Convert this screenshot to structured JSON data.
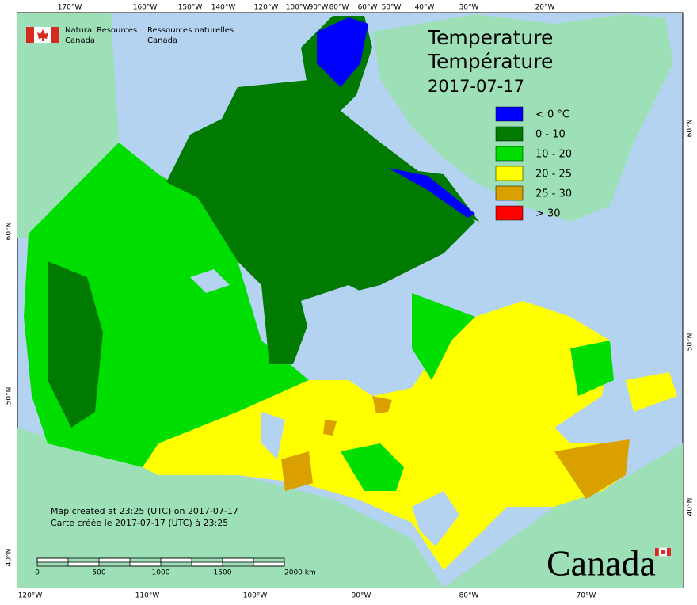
{
  "header": {
    "agency_en": [
      "Natural Resources",
      "Canada"
    ],
    "agency_fr": [
      "Ressources naturelles",
      "Canada"
    ]
  },
  "title": {
    "lines": [
      "Temperature",
      "Température",
      "2017-07-17"
    ]
  },
  "legend": [
    {
      "label": "< 0 °C",
      "color": "#0000ff"
    },
    {
      "label": "0 - 10",
      "color": "#007a00"
    },
    {
      "label": "10 - 20",
      "color": "#00dd00"
    },
    {
      "label": "20 - 25",
      "color": "#ffff00"
    },
    {
      "label": "25 - 30",
      "color": "#d9a000"
    },
    {
      "label": "> 30",
      "color": "#ff0000"
    }
  ],
  "graticule": {
    "top": [
      "170°W",
      "160°W",
      "150°W",
      "140°W",
      "120°W",
      "100°W",
      "90°W",
      "80°W",
      "60°W",
      "50°W",
      "40°W",
      "30°W",
      "20°W"
    ],
    "bottom": [
      "120°W",
      "110°W",
      "100°W",
      "90°W",
      "80°W",
      "70°W"
    ],
    "left": [
      "60°N",
      "50°N",
      "40°N"
    ],
    "right": [
      "60°N",
      "50°N",
      "40°N"
    ]
  },
  "notes": [
    "Map created at 23:25 (UTC) on 2017-07-17",
    "Carte créée le 2017-07-17 (UTC) à 23:25"
  ],
  "scale_bar": [
    "0",
    "500",
    "1000",
    "1500",
    "2000 km"
  ],
  "wordmark": "Canada"
}
